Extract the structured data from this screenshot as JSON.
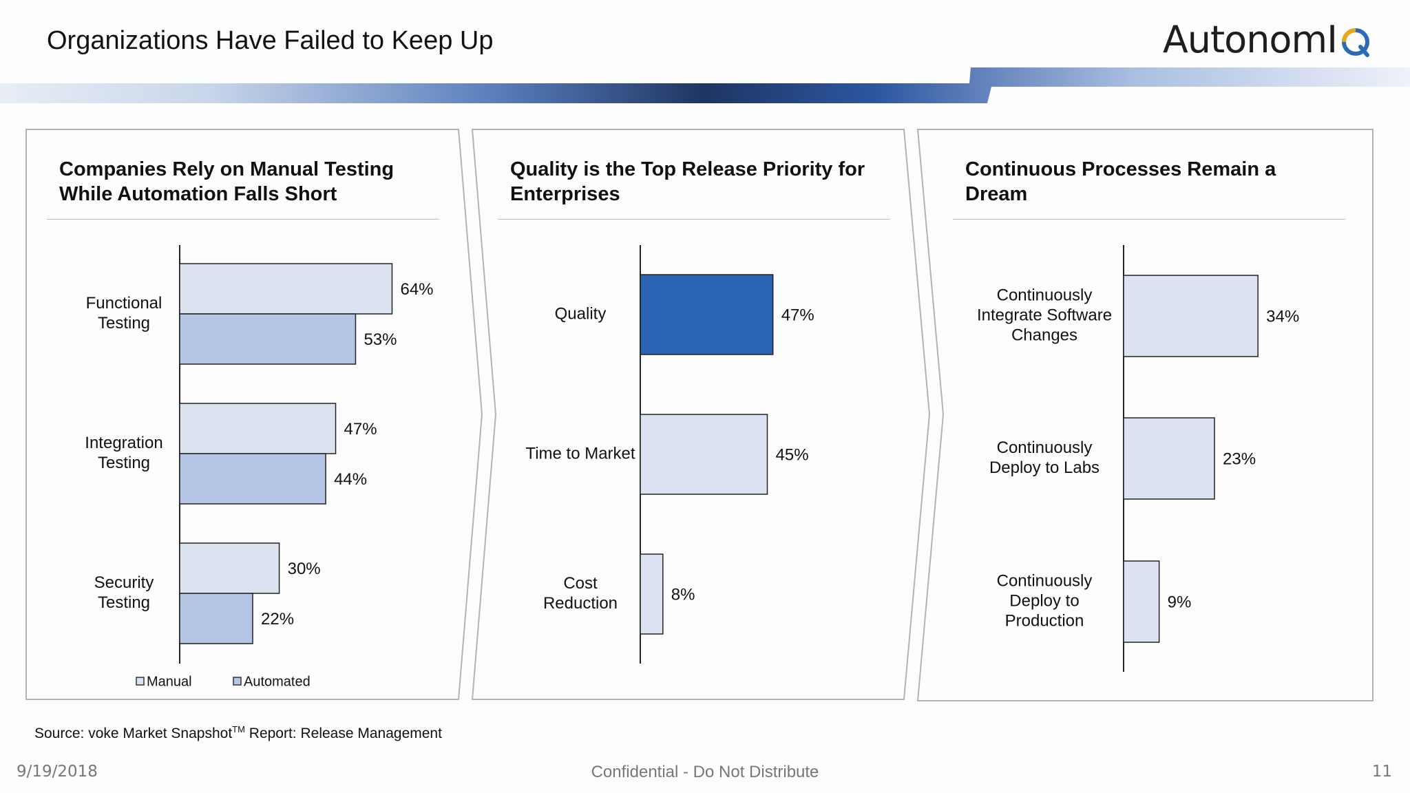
{
  "slide": {
    "title": "Organizations Have Failed to Keep Up",
    "logo_text": "AutonomI",
    "source_prefix": "Source: voke Market Snapshot",
    "source_sup": "TM",
    "source_suffix": " Report: Release Management",
    "date": "9/19/2018",
    "confidential": "Confidential - Do Not Distribute",
    "page_number": "11"
  },
  "colors": {
    "band_dark": "#1f3866",
    "manual": "#dbe3f0",
    "automated": "#b4c5e6",
    "quality_highlight": "#2a62b4",
    "light_bar": "#dbe3f3"
  },
  "chart_data": [
    {
      "type": "bar",
      "orientation": "horizontal",
      "title_lines": [
        "Companies Rely on Manual Testing",
        "While Automation Falls Short"
      ],
      "categories": [
        [
          "Functional",
          "Testing"
        ],
        [
          "Integration",
          "Testing"
        ],
        [
          "Security",
          "Testing"
        ]
      ],
      "series": [
        {
          "name": "Manual",
          "values": [
            64,
            47,
            30
          ],
          "labels": [
            "64%",
            "47%",
            "30%"
          ],
          "color": "#dbe3f0"
        },
        {
          "name": "Automated",
          "values": [
            53,
            44,
            22
          ],
          "labels": [
            "53%",
            "44%",
            "22%"
          ],
          "color": "#b4c5e6"
        }
      ],
      "xlim": [
        0,
        100
      ],
      "legend": "bottom"
    },
    {
      "type": "bar",
      "orientation": "horizontal",
      "title_lines": [
        "Quality is the Top Release Priority for",
        "Enterprises"
      ],
      "categories": [
        [
          "Quality"
        ],
        [
          "Time to Market"
        ],
        [
          "Cost",
          "Reduction"
        ]
      ],
      "values": [
        47,
        45,
        8
      ],
      "labels": [
        "47%",
        "45%",
        "8%"
      ],
      "colors": [
        "#2a62b4",
        "#dbe3f3",
        "#dbe3f3"
      ],
      "xlim": [
        0,
        100
      ]
    },
    {
      "type": "bar",
      "orientation": "horizontal",
      "title_lines": [
        "Continuous Processes Remain a",
        "Dream"
      ],
      "categories": [
        [
          "Continuously",
          "Integrate Software",
          "Changes"
        ],
        [
          "Continuously",
          "Deploy to Labs"
        ],
        [
          "Continuously",
          "Deploy to",
          "Production"
        ]
      ],
      "values": [
        34,
        23,
        9
      ],
      "labels": [
        "34%",
        "23%",
        "9%"
      ],
      "colors": [
        "#dbe3f3",
        "#dbe3f3",
        "#dbe3f3"
      ],
      "xlim": [
        0,
        100
      ]
    }
  ]
}
